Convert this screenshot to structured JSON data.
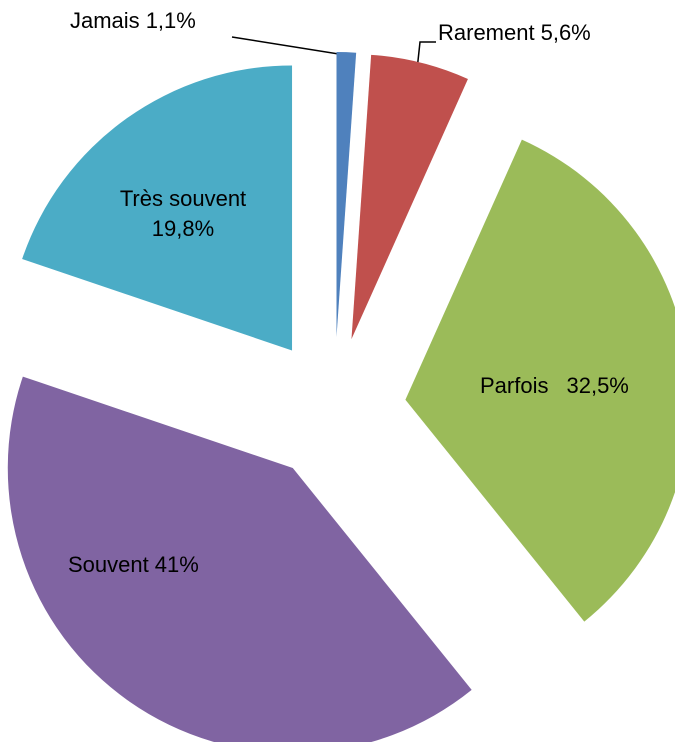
{
  "chart_data": {
    "type": "pie",
    "categories": [
      "Jamais",
      "Rarement",
      "Parfois",
      "Souvent",
      "Très souvent"
    ],
    "values": [
      1.1,
      5.6,
      32.5,
      41,
      19.8
    ],
    "value_labels": [
      "1,1%",
      "5,6%",
      "32,5%",
      "41%",
      "19,8%"
    ],
    "colors": [
      "#4f81bd",
      "#c0504d",
      "#9bbb59",
      "#8064a2",
      "#4bacc6"
    ]
  }
}
